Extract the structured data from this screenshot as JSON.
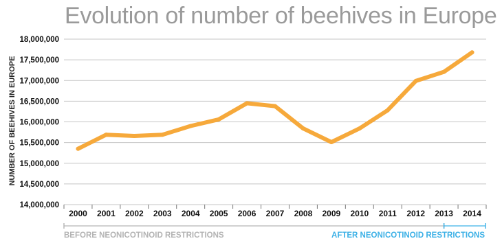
{
  "chart_data": {
    "type": "line",
    "title": "Evolution of number of beehives in Europe",
    "xlabel": "",
    "ylabel": "NUMBER OF BEEHIVES IN EUROPE",
    "categories": [
      "2000",
      "2001",
      "2002",
      "2003",
      "2004",
      "2005",
      "2006",
      "2007",
      "2008",
      "2009",
      "2010",
      "2011",
      "2012",
      "2013",
      "2014"
    ],
    "series": [
      {
        "values": [
          15350000,
          15690000,
          15660000,
          15690000,
          15900000,
          16060000,
          16450000,
          16380000,
          15840000,
          15510000,
          15840000,
          16280000,
          16990000,
          17210000,
          17680000
        ]
      }
    ],
    "ylim": [
      14000000,
      18000000
    ],
    "yticks": [
      14000000,
      14500000,
      15000000,
      15500000,
      16000000,
      16500000,
      17000000,
      17500000,
      18000000
    ],
    "ytick_labels": [
      "14,000,000",
      "14,500,000",
      "15,000,000",
      "15,500,000",
      "16,000,000",
      "16,500,000",
      "17,000,000",
      "17,500,000",
      "18,000,000"
    ],
    "grid": true,
    "line_color": "#F6A93B",
    "grid_color": "#c4c4c4",
    "annotations": [
      {
        "text": "BEFORE NEONICOTINOID RESTRICTIONS",
        "from": "2000",
        "to": "2013",
        "color": "#b3b3b3"
      },
      {
        "text": "AFTER NEONICOTINOID RESTRICTIONS",
        "from": "2013",
        "to": "2014",
        "color": "#3bb0e6"
      }
    ]
  }
}
